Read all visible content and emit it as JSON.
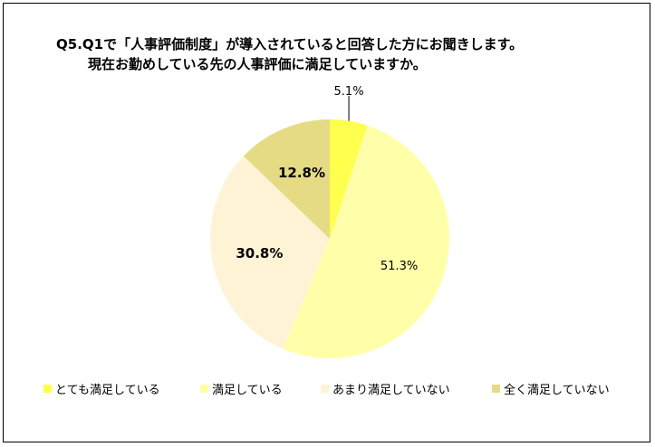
{
  "title": {
    "line1": "Q5.Q1で「人事評価制度」が導入されていると回答した方にお聞きします。",
    "line2": "現在お勤めしている先の人事評価に満足していますか。"
  },
  "chart_data": {
    "type": "pie",
    "categories": [
      "とても満足している",
      "満足している",
      "あまり満足していない",
      "全く満足していない"
    ],
    "values": [
      5.1,
      51.3,
      30.8,
      12.8
    ],
    "labels": [
      "5.1%",
      "51.3%",
      "30.8%",
      "12.8%"
    ],
    "colors": [
      "#FFFF4D",
      "#FFFFAA",
      "#FFF3D6",
      "#E6DB85"
    ],
    "start_angle": "top, clockwise",
    "legend_position": "bottom"
  }
}
